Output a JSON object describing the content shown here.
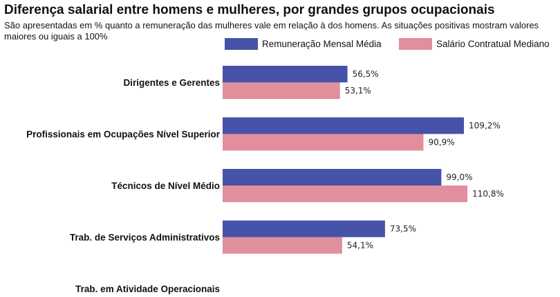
{
  "chart_data": {
    "type": "bar",
    "orientation": "horizontal",
    "title": "Diferença salarial entre homens e mulheres, por grandes grupos ocupacionais",
    "subtitle": "São apresentadas em % quanto a remuneração das mulheres vale em relação à dos homens. As situações positivas mostram valores maiores ou iguais a 100%",
    "categories": [
      "Dirigentes e Gerentes",
      "Profissionais em Ocupações Nível Superior",
      "Técnicos de Nível Médio",
      "Trab. de Serviços Administrativos",
      "Trab. em Atividade Operacionais"
    ],
    "series": [
      {
        "name": "Remuneração Mensal Média",
        "color": "#4653A8",
        "values": [
          56.5,
          109.2,
          99.0,
          73.5,
          null
        ],
        "labels": [
          "56,5%",
          "109,2%",
          "99,0%",
          "73,5%",
          null
        ]
      },
      {
        "name": "Salário Contratual Mediano",
        "color": "#E18F9C",
        "values": [
          53.1,
          90.9,
          110.8,
          54.1,
          null
        ],
        "labels": [
          "53,1%",
          "90,9%",
          "110,8%",
          "54,1%",
          null
        ]
      }
    ],
    "xlabel": "",
    "ylabel": "",
    "xlim": [
      0,
      150
    ],
    "grid": false,
    "legend": "top-right"
  }
}
